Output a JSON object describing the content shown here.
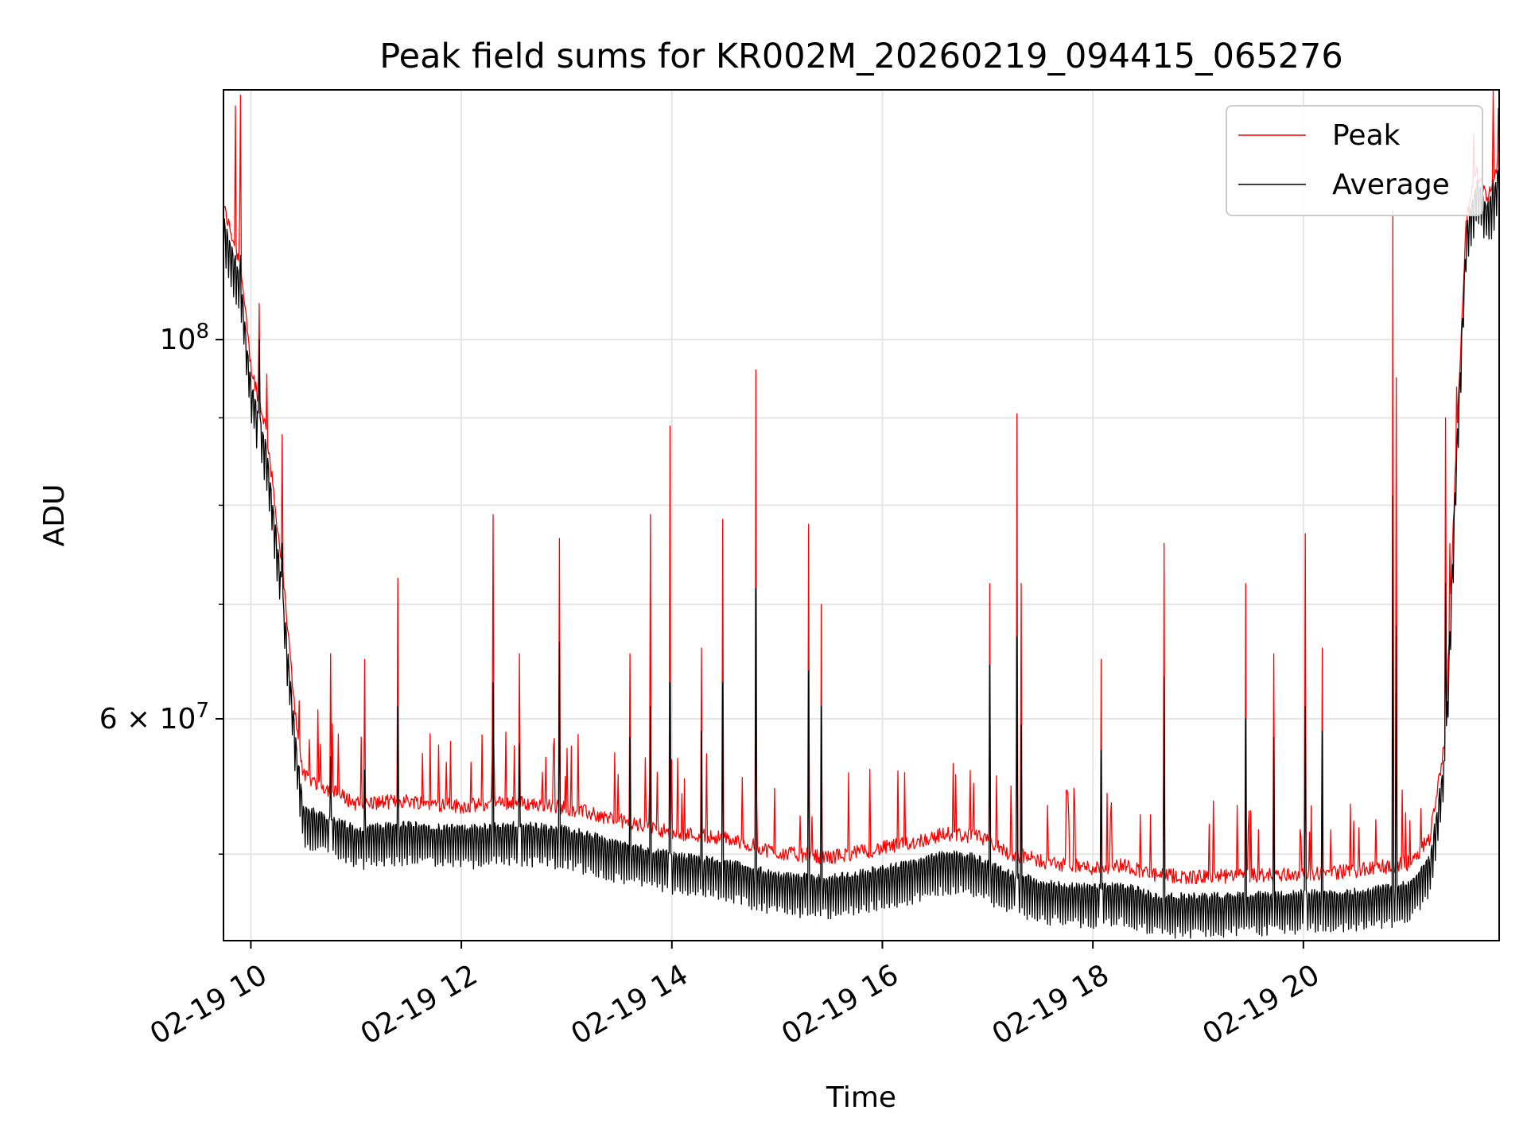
{
  "chart_data": {
    "type": "line",
    "title": "Peak field sums for KR002M_20260219_094415_065276",
    "xlabel": "Time",
    "ylabel": "ADU",
    "yscale": "log",
    "xlim": [
      9.74,
      21.86
    ],
    "ylim": [
      44500000,
      140000000
    ],
    "grid": true,
    "legend_position": "top-right",
    "x_ticks": [
      {
        "value": 10,
        "label": "02-19 10"
      },
      {
        "value": 12,
        "label": "02-19 12"
      },
      {
        "value": 14,
        "label": "02-19 14"
      },
      {
        "value": 16,
        "label": "02-19 16"
      },
      {
        "value": 18,
        "label": "02-19 18"
      },
      {
        "value": 20,
        "label": "02-19 20"
      }
    ],
    "y_major_ticks": [
      {
        "value": 60000000,
        "base": "6 × 10",
        "exp": "7"
      },
      {
        "value": 100000000,
        "base": "10",
        "exp": "8"
      }
    ],
    "y_minor_ticks": [
      50000000,
      70000000,
      80000000,
      90000000
    ],
    "series": [
      {
        "name": "Peak",
        "color": "#ff0000"
      },
      {
        "name": "Average",
        "color": "#000000"
      }
    ],
    "baseline": {
      "x": [
        9.74,
        9.9,
        10.0,
        10.15,
        10.3,
        10.42,
        10.5,
        11.0,
        11.5,
        12.0,
        12.5,
        13.0,
        13.5,
        14.0,
        14.5,
        15.0,
        15.5,
        16.0,
        16.3,
        16.6,
        16.9,
        17.2,
        17.6,
        18.0,
        18.3,
        18.6,
        19.0,
        19.5,
        20.0,
        20.5,
        21.0,
        21.2,
        21.35,
        21.45,
        21.55,
        21.65,
        21.75,
        21.8,
        21.86
      ],
      "avg": [
        117000000,
        108000000,
        94000000,
        86000000,
        71000000,
        58500000,
        53000000,
        51500000,
        51800000,
        51500000,
        51800000,
        51500000,
        50500000,
        49700000,
        49300000,
        48400000,
        48200000,
        48800000,
        49200000,
        49800000,
        49600000,
        48500000,
        47800000,
        47600000,
        47700000,
        47000000,
        47000000,
        47100000,
        47200000,
        47300000,
        47800000,
        49500000,
        57000000,
        84000000,
        116000000,
        123000000,
        119000000,
        121000000,
        126000000
      ],
      "peak": [
        118500000,
        109500000,
        95500000,
        87500000,
        72500000,
        60000000,
        55000000,
        53000000,
        53200000,
        52800000,
        53100000,
        52700000,
        51800000,
        51000000,
        50600000,
        49600000,
        49300000,
        49900000,
        50300000,
        50900000,
        50700000,
        49600000,
        48900000,
        48600000,
        48800000,
        48100000,
        48000000,
        48100000,
        48200000,
        48400000,
        48900000,
        50600000,
        58000000,
        85000000,
        117000000,
        124000000,
        120000000,
        122000000,
        127000000
      ]
    },
    "spikes": [
      {
        "x": 9.85,
        "peak": 137000000,
        "avg": 112000000
      },
      {
        "x": 9.9,
        "peak": 139000000,
        "avg": 112000000
      },
      {
        "x": 10.08,
        "peak": 105000000,
        "avg": 100000000
      },
      {
        "x": 10.3,
        "peak": 88000000,
        "avg": 76000000
      },
      {
        "x": 10.76,
        "peak": 65500000,
        "avg": 57000000
      },
      {
        "x": 11.08,
        "peak": 65000000,
        "avg": 56000000
      },
      {
        "x": 11.4,
        "peak": 72500000,
        "avg": 61000000
      },
      {
        "x": 12.3,
        "peak": 79000000,
        "avg": 63000000
      },
      {
        "x": 12.55,
        "peak": 65500000,
        "avg": 58000000
      },
      {
        "x": 12.93,
        "peak": 76500000,
        "avg": 66500000
      },
      {
        "x": 13.6,
        "peak": 65500000,
        "avg": 58500000
      },
      {
        "x": 13.8,
        "peak": 79000000,
        "avg": 61000000
      },
      {
        "x": 13.98,
        "peak": 89000000,
        "avg": 63000000
      },
      {
        "x": 14.28,
        "peak": 66000000,
        "avg": 59000000
      },
      {
        "x": 14.48,
        "peak": 78500000,
        "avg": 63000000
      },
      {
        "x": 14.8,
        "peak": 96000000,
        "avg": 71500000
      },
      {
        "x": 15.3,
        "peak": 78000000,
        "avg": 64000000
      },
      {
        "x": 15.42,
        "peak": 70000000,
        "avg": 61000000
      },
      {
        "x": 17.02,
        "peak": 72000000,
        "avg": 64500000
      },
      {
        "x": 17.28,
        "peak": 90500000,
        "avg": 67000000
      },
      {
        "x": 17.32,
        "peak": 72000000,
        "avg": 59500000
      },
      {
        "x": 18.08,
        "peak": 65000000,
        "avg": 57500000
      },
      {
        "x": 18.68,
        "peak": 76000000,
        "avg": 63500000
      },
      {
        "x": 19.45,
        "peak": 72000000,
        "avg": 60000000
      },
      {
        "x": 19.72,
        "peak": 65500000,
        "avg": 58500000
      },
      {
        "x": 20.02,
        "peak": 77000000,
        "avg": 61000000
      },
      {
        "x": 20.18,
        "peak": 66000000,
        "avg": 59000000
      },
      {
        "x": 20.85,
        "peak": 119000000,
        "avg": 81000000
      },
      {
        "x": 20.88,
        "peak": 95000000,
        "avg": 68000000
      },
      {
        "x": 21.35,
        "peak": 90000000,
        "avg": 72000000
      },
      {
        "x": 21.8,
        "peak": 140000000,
        "avg": 124000000
      }
    ]
  }
}
